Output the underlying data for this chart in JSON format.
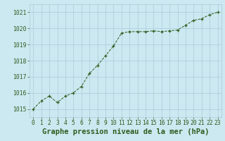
{
  "x": [
    0,
    1,
    2,
    3,
    4,
    5,
    6,
    7,
    8,
    9,
    10,
    11,
    12,
    13,
    14,
    15,
    16,
    17,
    18,
    19,
    20,
    21,
    22,
    23
  ],
  "y": [
    1015.0,
    1015.5,
    1015.8,
    1015.4,
    1015.8,
    1016.0,
    1016.4,
    1017.2,
    1017.7,
    1018.3,
    1018.9,
    1019.7,
    1019.8,
    1019.8,
    1019.8,
    1019.85,
    1019.8,
    1019.85,
    1019.9,
    1020.2,
    1020.5,
    1020.6,
    1020.85,
    1021.0
  ],
  "line_color": "#2d5c1e",
  "marker": "+",
  "marker_color": "#2d5c1e",
  "bg_color": "#cce8f0",
  "grid_color": "#aaccdd",
  "xlabel": "Graphe pression niveau de la mer (hPa)",
  "xlabel_color": "#2d5c1e",
  "xlabel_fontsize": 7.5,
  "tick_color": "#2d5c1e",
  "tick_fontsize": 5.8,
  "ylim": [
    1014.5,
    1021.5
  ],
  "yticks": [
    1015,
    1016,
    1017,
    1018,
    1019,
    1020,
    1021
  ],
  "xlim": [
    -0.5,
    23.5
  ],
  "xticks": [
    0,
    1,
    2,
    3,
    4,
    5,
    6,
    7,
    8,
    9,
    10,
    11,
    12,
    13,
    14,
    15,
    16,
    17,
    18,
    19,
    20,
    21,
    22,
    23
  ]
}
